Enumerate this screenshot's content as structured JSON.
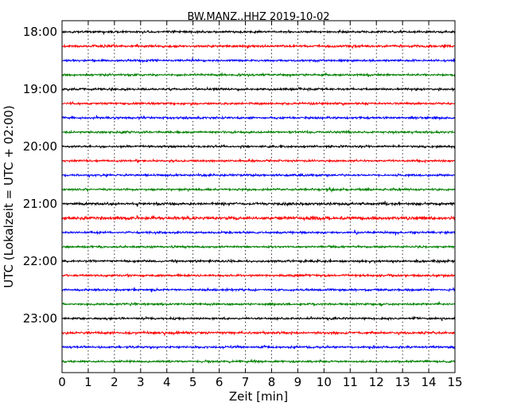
{
  "chart_data": {
    "type": "line",
    "title": "BW.MANZ..HHZ 2019-10-02",
    "xlabel": "Zeit  [min]",
    "ylabel": "UTC (Lokalzeit = UTC + 02:00)",
    "xlim": [
      0,
      15
    ],
    "x_ticks": [
      "0",
      "1",
      "2",
      "3",
      "4",
      "5",
      "6",
      "7",
      "8",
      "9",
      "10",
      "11",
      "12",
      "13",
      "14",
      "15"
    ],
    "y_ticks": [
      {
        "label": "18:00",
        "trace": 0
      },
      {
        "label": "19:00",
        "trace": 4
      },
      {
        "label": "20:00",
        "trace": 8
      },
      {
        "label": "21:00",
        "trace": 12
      },
      {
        "label": "22:00",
        "trace": 16
      },
      {
        "label": "23:00",
        "trace": 20
      }
    ],
    "grid": "vertical-dotted",
    "trace_interval_minutes": 15,
    "color_cycle": [
      "#000000",
      "#ff0000",
      "#0000ff",
      "#008000"
    ],
    "series": [
      {
        "start": "18:00",
        "amplitude": 0.6
      },
      {
        "start": "18:15",
        "amplitude": 0.7
      },
      {
        "start": "18:30",
        "amplitude": 0.6
      },
      {
        "start": "18:45",
        "amplitude": 0.6
      },
      {
        "start": "19:00",
        "amplitude": 0.6
      },
      {
        "start": "19:15",
        "amplitude": 0.6
      },
      {
        "start": "19:30",
        "amplitude": 0.6
      },
      {
        "start": "19:45",
        "amplitude": 0.6
      },
      {
        "start": "20:00",
        "amplitude": 0.6
      },
      {
        "start": "20:15",
        "amplitude": 0.6
      },
      {
        "start": "20:30",
        "amplitude": 0.6
      },
      {
        "start": "20:45",
        "amplitude": 0.6
      },
      {
        "start": "21:00",
        "amplitude": 0.7
      },
      {
        "start": "21:15",
        "amplitude": 0.9
      },
      {
        "start": "21:30",
        "amplitude": 0.6
      },
      {
        "start": "21:45",
        "amplitude": 0.6
      },
      {
        "start": "22:00",
        "amplitude": 0.6
      },
      {
        "start": "22:15",
        "amplitude": 0.6
      },
      {
        "start": "22:30",
        "amplitude": 0.6
      },
      {
        "start": "22:45",
        "amplitude": 0.6
      },
      {
        "start": "23:00",
        "amplitude": 0.6
      },
      {
        "start": "23:15",
        "amplitude": 0.7
      },
      {
        "start": "23:30",
        "amplitude": 0.6
      },
      {
        "start": "23:45",
        "amplitude": 0.6
      }
    ]
  }
}
